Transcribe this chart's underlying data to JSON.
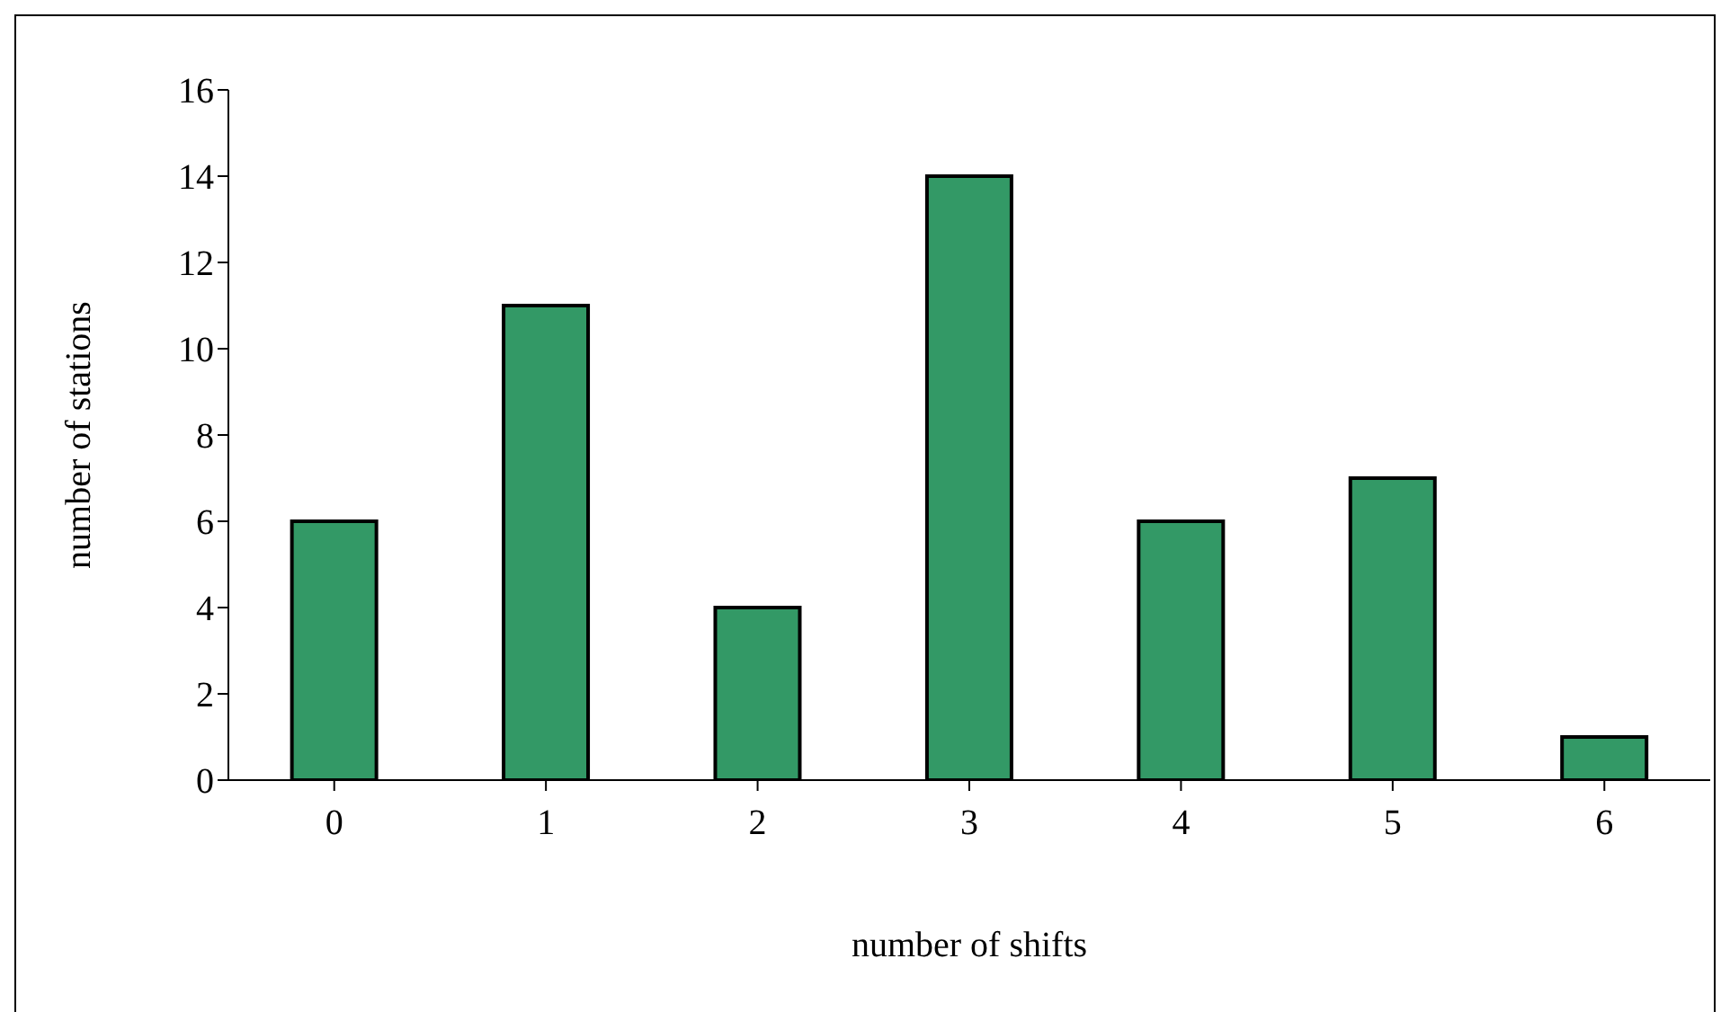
{
  "chart_data": {
    "type": "bar",
    "xlabel": "number of shifts",
    "ylabel": "number of stations",
    "categories": [
      "0",
      "1",
      "2",
      "3",
      "4",
      "5",
      "6"
    ],
    "series": [
      {
        "color": "#339966",
        "values": [
          6,
          11,
          4,
          14,
          6,
          7,
          1
        ]
      }
    ],
    "ylim": [
      0,
      16
    ],
    "yticks": [
      0,
      2,
      4,
      6,
      8,
      10,
      12,
      14,
      16
    ],
    "grid": false,
    "legend": false
  }
}
